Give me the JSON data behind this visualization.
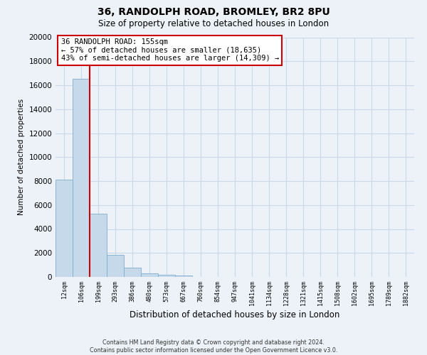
{
  "title": "36, RANDOLPH ROAD, BROMLEY, BR2 8PU",
  "subtitle": "Size of property relative to detached houses in London",
  "xlabel": "Distribution of detached houses by size in London",
  "ylabel": "Number of detached properties",
  "bar_labels": [
    "12sqm",
    "106sqm",
    "199sqm",
    "293sqm",
    "386sqm",
    "480sqm",
    "573sqm",
    "667sqm",
    "760sqm",
    "854sqm",
    "947sqm",
    "1041sqm",
    "1134sqm",
    "1228sqm",
    "1321sqm",
    "1415sqm",
    "1508sqm",
    "1602sqm",
    "1695sqm",
    "1789sqm",
    "1882sqm"
  ],
  "bar_values": [
    8100,
    16550,
    5300,
    1850,
    750,
    310,
    200,
    120,
    0,
    0,
    0,
    0,
    0,
    0,
    0,
    0,
    0,
    0,
    0,
    0,
    0
  ],
  "bar_color": "#c5d9ea",
  "bar_edge_color": "#7faed0",
  "vline_x_index": 1,
  "vline_color": "#cc0000",
  "vline_linewidth": 1.5,
  "annotation_title": "36 RANDOLPH ROAD: 155sqm",
  "annotation_line1": "← 57% of detached houses are smaller (18,635)",
  "annotation_line2": "43% of semi-detached houses are larger (14,309) →",
  "annotation_box_color": "white",
  "annotation_box_edge": "#cc0000",
  "ylim": [
    0,
    20000
  ],
  "yticks": [
    0,
    2000,
    4000,
    6000,
    8000,
    10000,
    12000,
    14000,
    16000,
    18000,
    20000
  ],
  "grid_color": "#c8d8e8",
  "footer_line1": "Contains HM Land Registry data © Crown copyright and database right 2024.",
  "footer_line2": "Contains public sector information licensed under the Open Government Licence v3.0.",
  "bg_color": "#edf2f8",
  "plot_bg_color": "#edf2f8"
}
